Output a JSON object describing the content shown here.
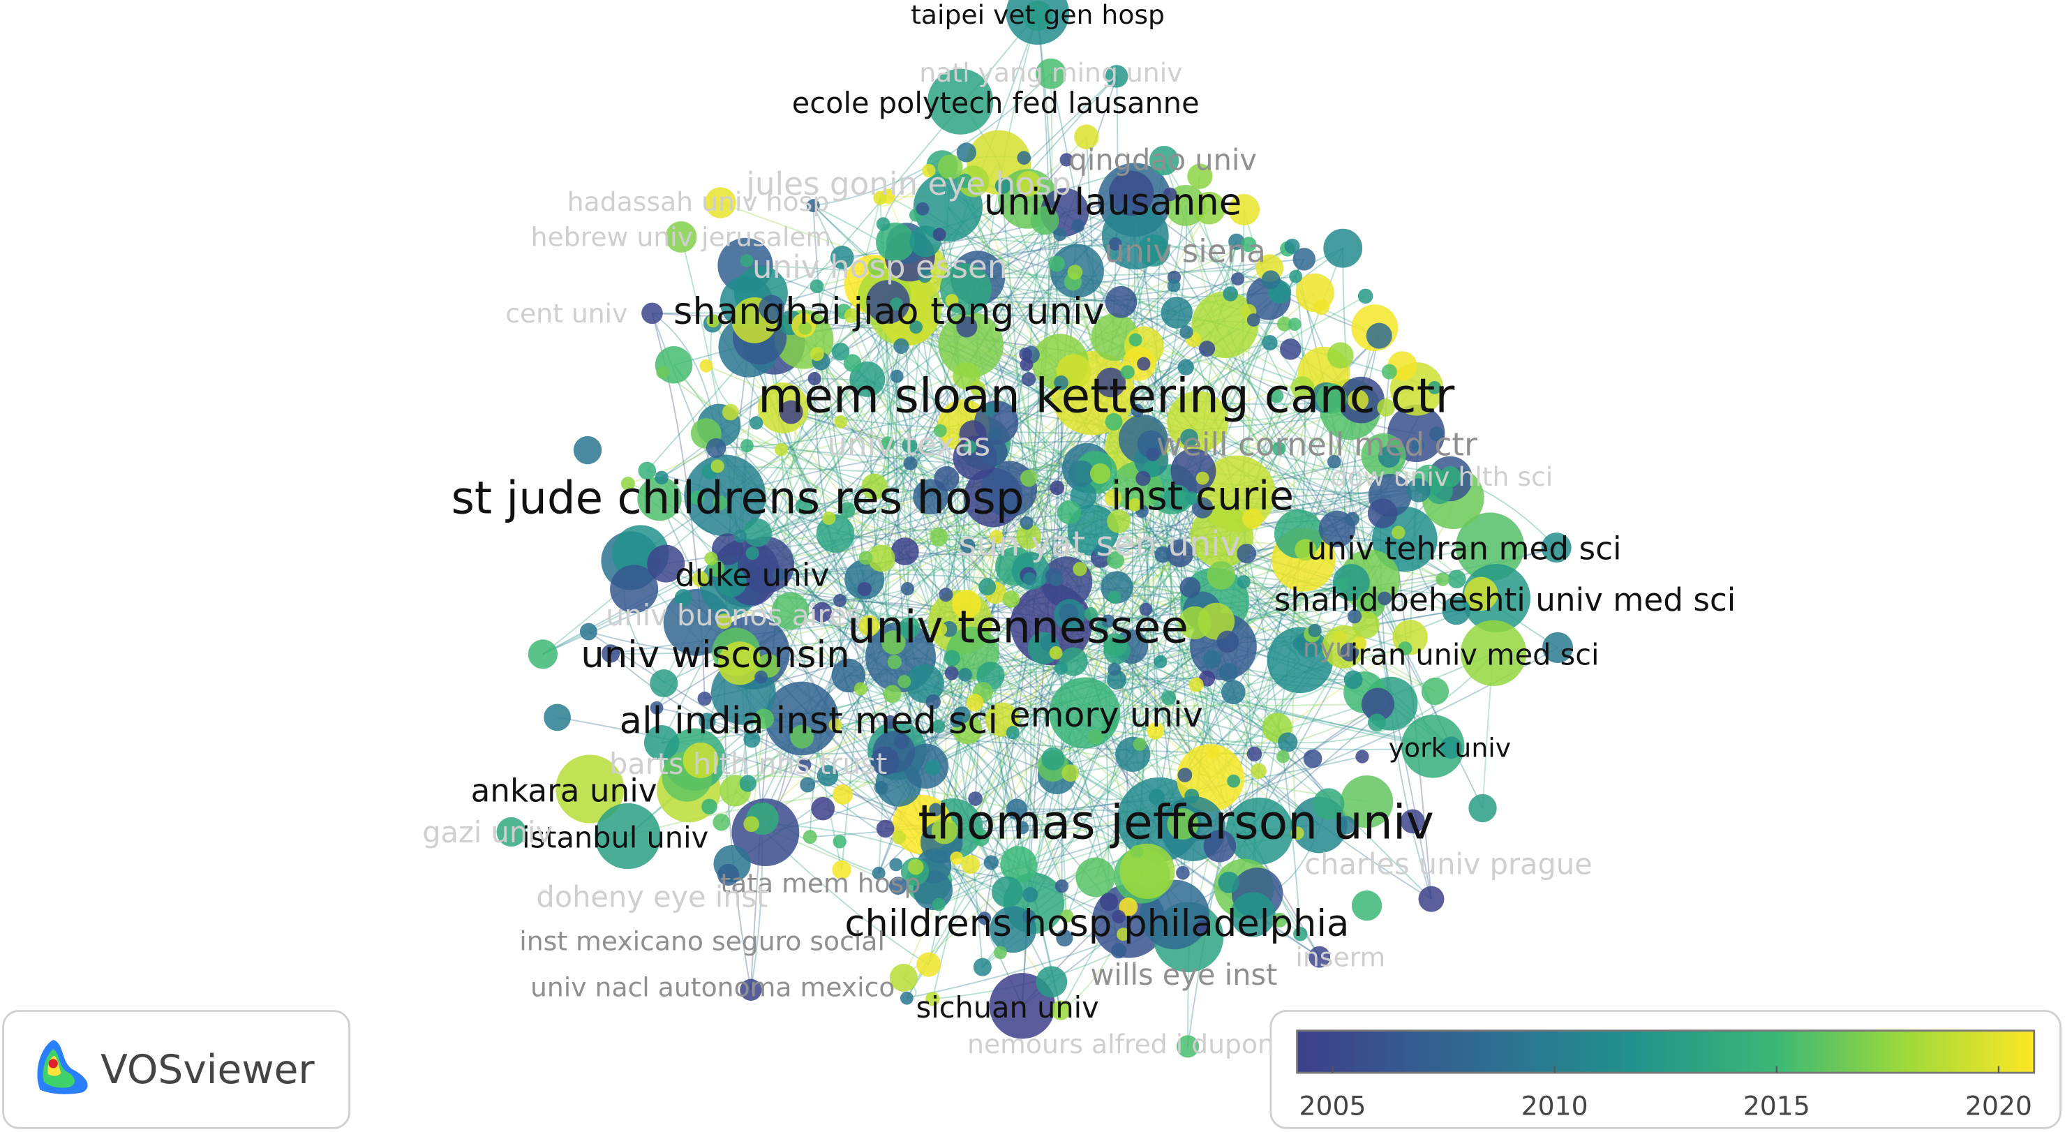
{
  "labels": [
    "taipei vet gen hosp",
    "natl yang ming univ",
    "ecole polytech fed lausanne",
    "qingdao univ",
    "jules gonin eye hosp",
    "hadassah univ hosp",
    "univ lausanne",
    "hebrew univ jerusalem",
    "univ siena",
    "univ hosp essen",
    "cent univ",
    "shanghai jiao tong univ",
    "mem sloan kettering canc ctr",
    "weill cornell med ctr",
    "univ texas",
    "dow univ hlth sci",
    "st jude childrens res hosp",
    "inst curie",
    "sun yat sen univ",
    "univ tehran med sci",
    "duke univ",
    "shahid beheshti univ med sci",
    "univ buenos aires",
    "univ tennessee",
    "nyu",
    "iran univ med sci",
    "univ wisconsin",
    "all india inst med sci",
    "emory univ",
    "york univ",
    "barts hlth nhs trust",
    "ankara univ",
    "thomas jefferson univ",
    "istanbul univ",
    "gazi univ",
    "tata mem hosp",
    "charles univ prague",
    "doheny eye inst",
    "childrens hosp philadelphia",
    "inst mexicano seguro social",
    "inserm",
    "wills eye inst",
    "univ nacl autonoma mexico",
    "sichuan univ",
    "nemours alfred i dupont"
  ],
  "legend": {
    "range": [
      2004.2,
      2020.8
    ],
    "ticks": [
      2005,
      2010,
      2015,
      2020
    ]
  },
  "logo": "VOSviewer"
}
